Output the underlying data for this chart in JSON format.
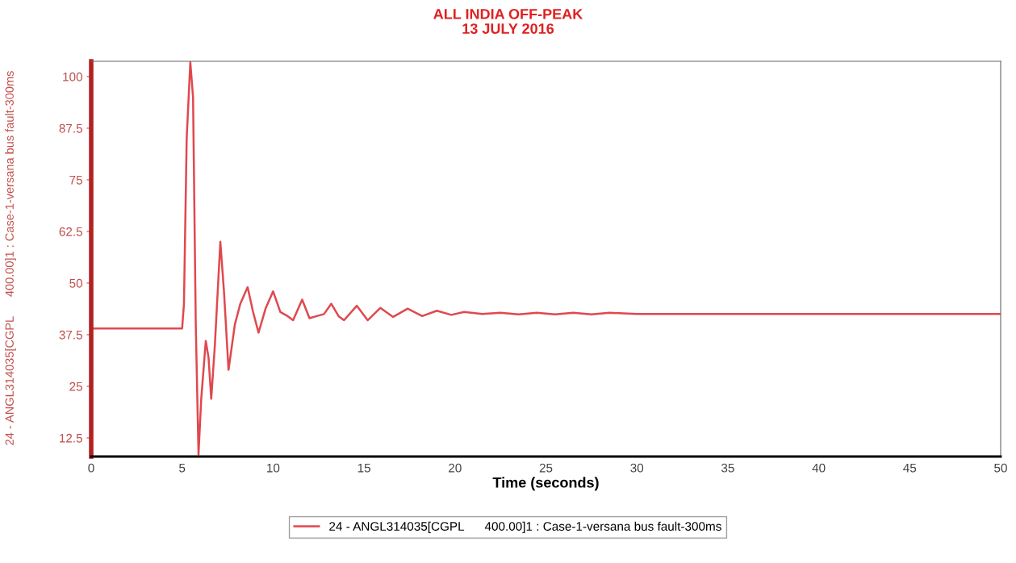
{
  "chart_data": {
    "type": "line",
    "title": "ALL INDIA OFF-PEAK\n13 JULY 2016",
    "xlabel": "Time (seconds)",
    "ylabel": "24 - ANGL314035[CGPL      400.00]1 : Case-1-versana bus fault-300ms",
    "xlim": [
      0,
      50
    ],
    "xticks": [
      0,
      5,
      10,
      15,
      20,
      25,
      30,
      35,
      40,
      45,
      50
    ],
    "ylim": [
      8,
      103.7
    ],
    "yticks": [
      12.5,
      25,
      37.5,
      50,
      62.5,
      75,
      87.5,
      100
    ],
    "grid": false,
    "legend": "bottom",
    "marker": "none",
    "line_style": "solid",
    "series": [
      {
        "name": "24 - ANGL314035[CGPL      400.00]1 : Case-1-versana bus fault-300ms",
        "color": "#e0484e",
        "x": [
          0,
          5.0,
          5.1,
          5.25,
          5.45,
          5.6,
          5.75,
          5.9,
          6.05,
          6.3,
          6.45,
          6.6,
          6.8,
          7.1,
          7.3,
          7.55,
          7.9,
          8.2,
          8.6,
          8.9,
          9.2,
          9.6,
          10.0,
          10.4,
          10.8,
          11.1,
          11.6,
          12.0,
          12.4,
          12.8,
          13.2,
          13.6,
          13.9,
          14.6,
          15.2,
          15.9,
          16.6,
          17.4,
          18.2,
          19.0,
          19.8,
          20.5,
          21.5,
          22.5,
          23.5,
          24.5,
          25.5,
          26.5,
          27.5,
          28.5,
          29.5,
          30,
          40,
          50
        ],
        "values": [
          39,
          39,
          45,
          85,
          103.5,
          95,
          40,
          8.5,
          22,
          36,
          32,
          22,
          35,
          60,
          48,
          29,
          40,
          45,
          49,
          43,
          38,
          44,
          48,
          43,
          42,
          41,
          46,
          41.5,
          42,
          42.5,
          45,
          42,
          41,
          44.5,
          41,
          44,
          41.8,
          43.8,
          42,
          43.3,
          42.3,
          43,
          42.5,
          42.8,
          42.4,
          42.8,
          42.4,
          42.8,
          42.4,
          42.8,
          42.6,
          42.5,
          42.5,
          42.5
        ]
      }
    ]
  }
}
